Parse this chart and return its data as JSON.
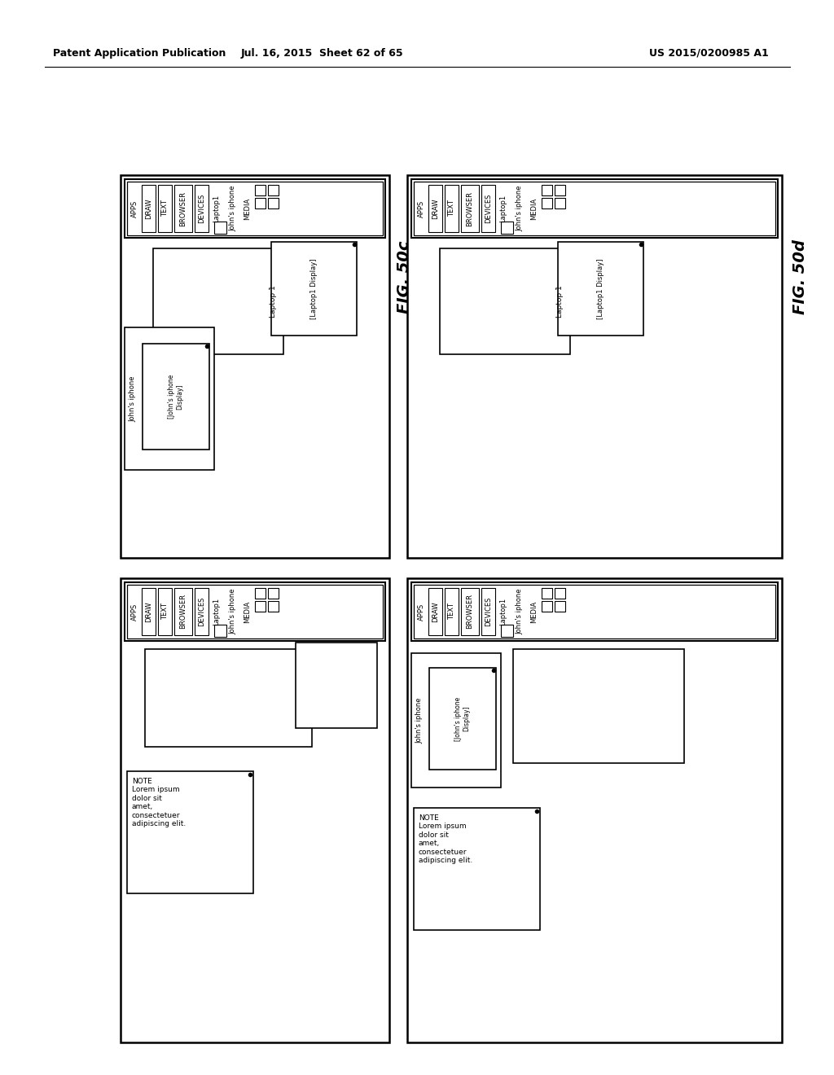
{
  "bg_color": "#ffffff",
  "header_left": "Patent Application Publication",
  "header_mid": "Jul. 16, 2015  Sheet 62 of 65",
  "header_right": "US 2015/0200985 A1",
  "fig_50c_label": "FIG. 50c",
  "fig_50d_label": "FIG. 50d",
  "note_text": "NOTE\nLorem ipsum\ndolor sit\namet,\nconsectetuer\nadipiscing elit."
}
